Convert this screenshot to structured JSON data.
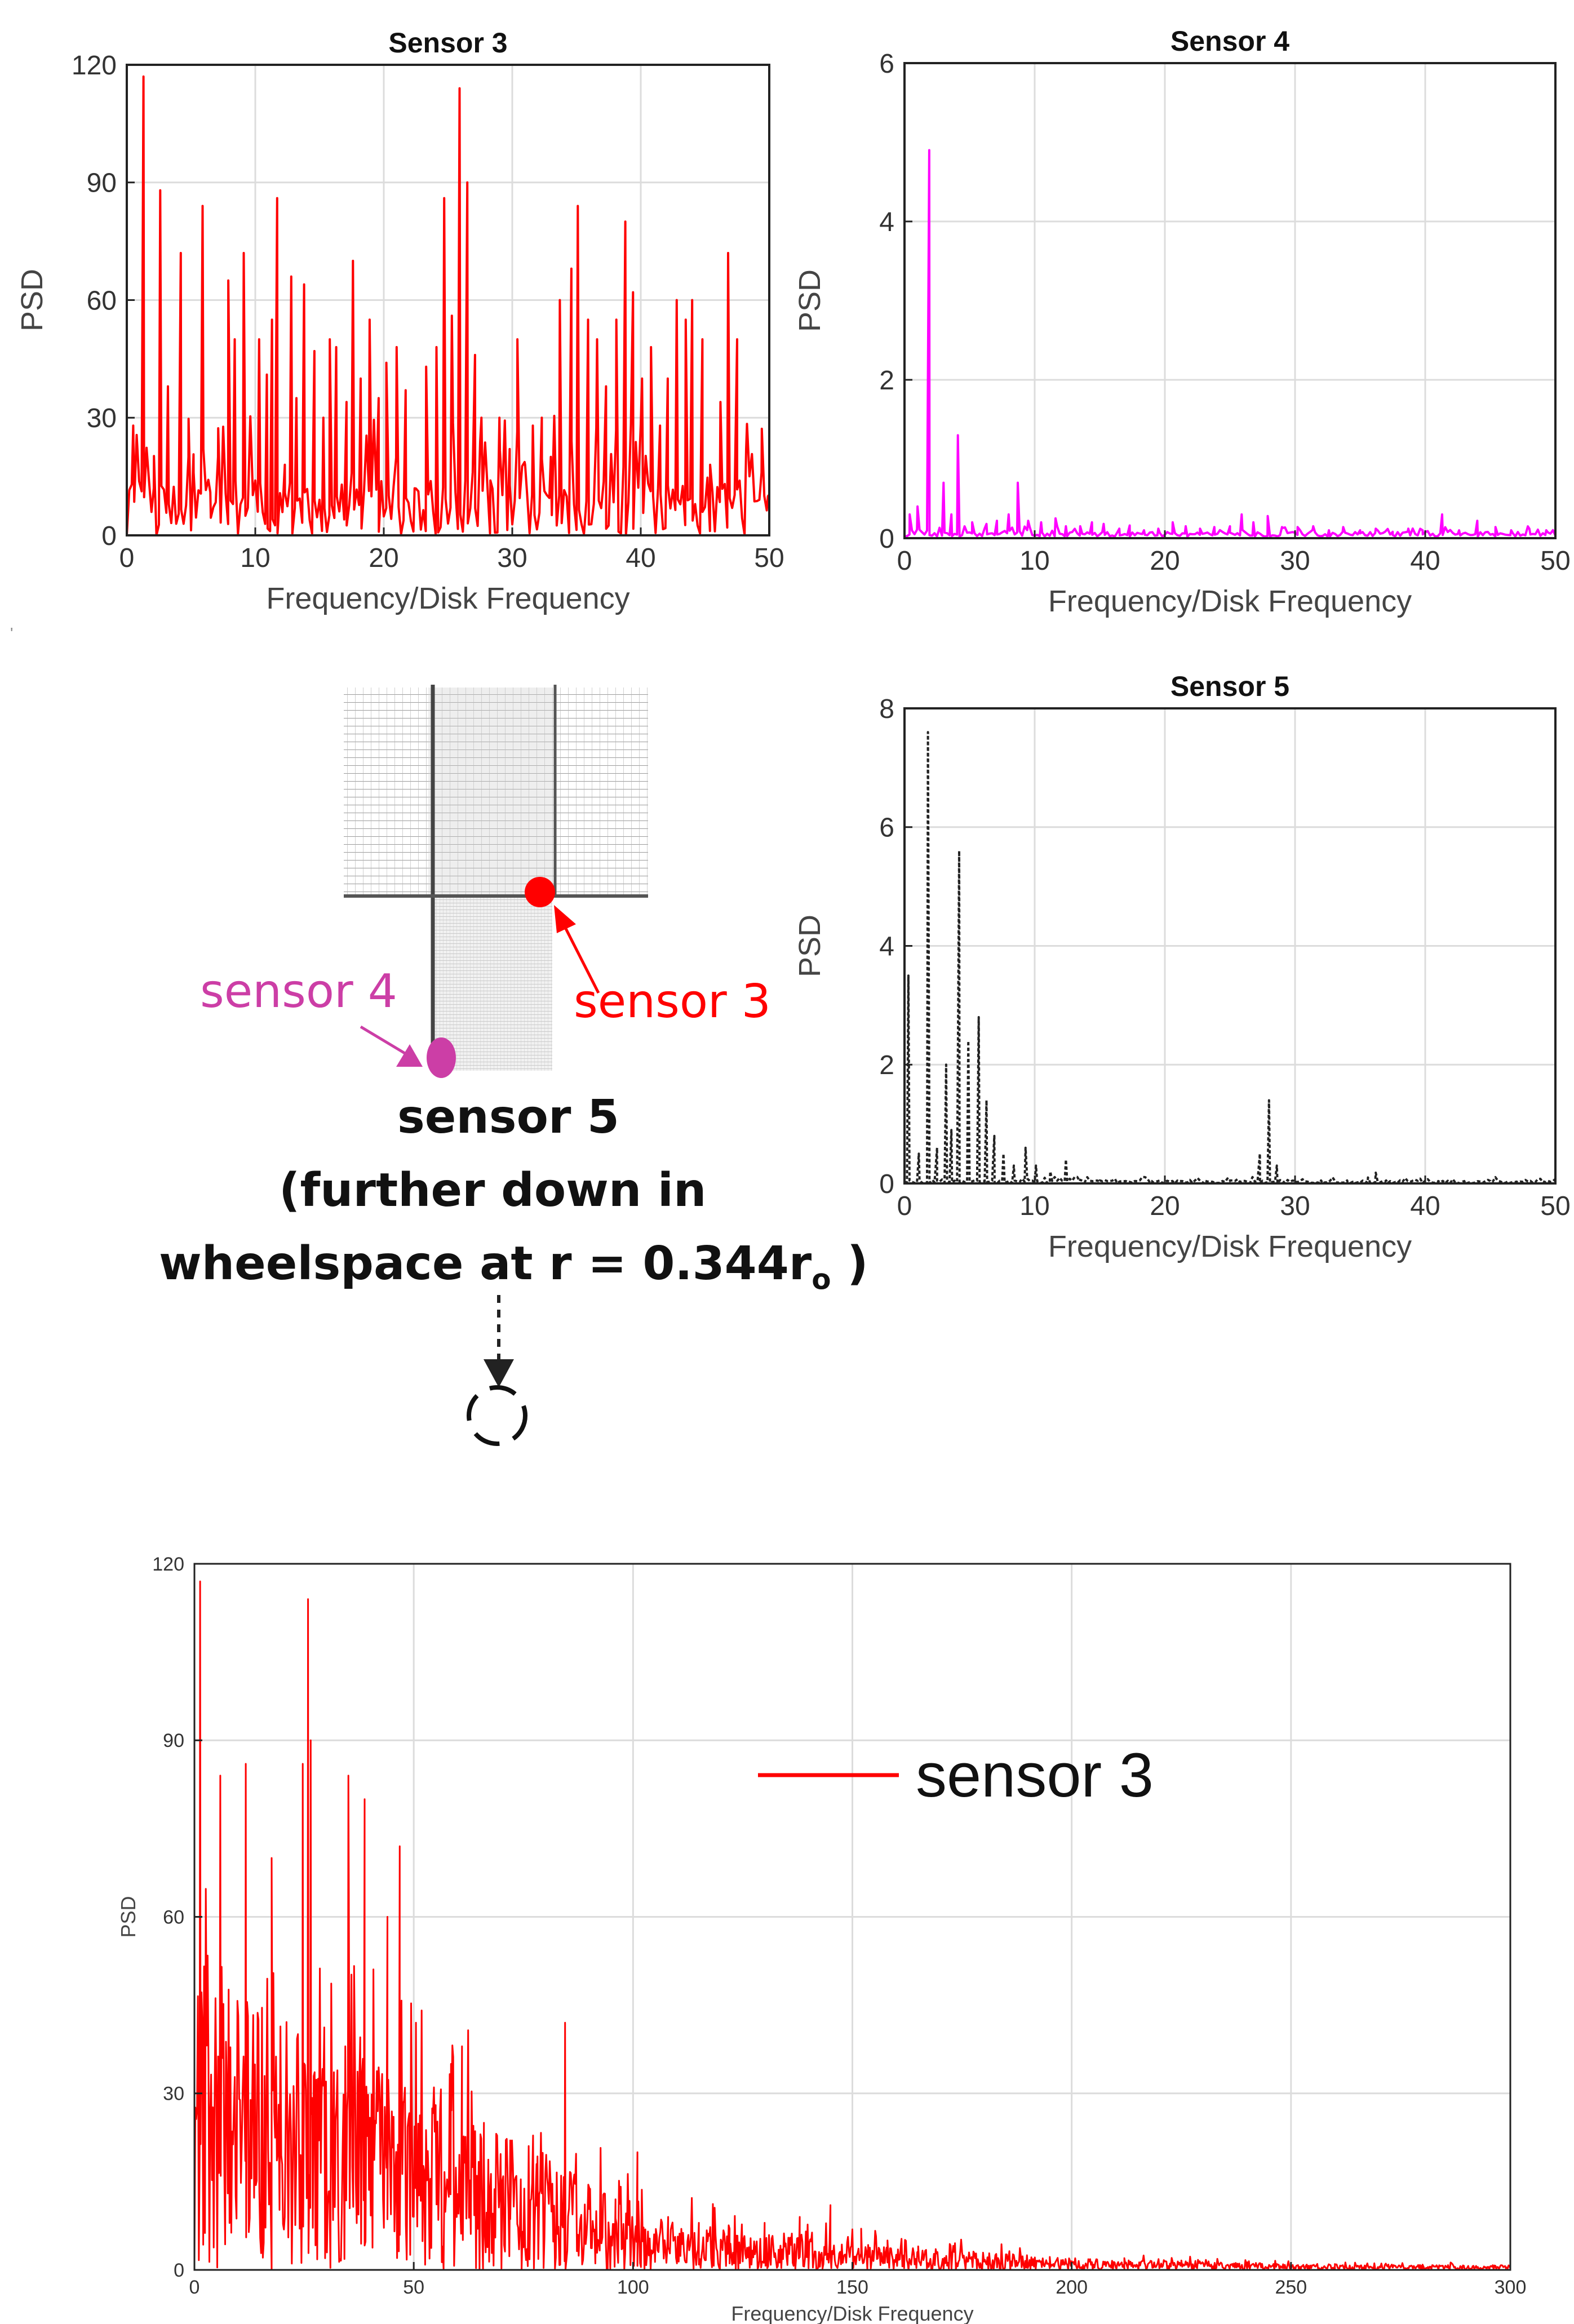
{
  "figure": {
    "stray_mark": "'"
  },
  "diagram": {
    "sensor3_label": "sensor 3",
    "sensor4_label": "sensor 4",
    "sensor5_line1": "sensor 5",
    "sensor5_line2": "(further down in",
    "sensor5_line3_main": "wheelspace at r = 0.344r",
    "sensor5_line3_sub": "o",
    "sensor5_line3_end": " )",
    "colors": {
      "sensor3": "#ff0000",
      "sensor4": "#cc3ea6",
      "mesh": "#888888"
    }
  },
  "chart_data": [
    {
      "id": "sensor3",
      "type": "line",
      "title": "Sensor 3",
      "xlabel": "Frequency/Disk Frequency",
      "ylabel": "PSD",
      "xlim": [
        0,
        50
      ],
      "ylim": [
        0,
        120
      ],
      "xticks": [
        0,
        10,
        20,
        30,
        40,
        50
      ],
      "yticks": [
        0,
        30,
        60,
        90,
        120
      ],
      "grid": true,
      "color": "#ff0000",
      "dash": "",
      "series": [
        {
          "name": "Sensor 3",
          "peaks": [
            [
              0.5,
              28
            ],
            [
              1.3,
              117
            ],
            [
              2.1,
              12
            ],
            [
              2.6,
              88
            ],
            [
              3.2,
              38
            ],
            [
              3.6,
              10
            ],
            [
              4.2,
              72
            ],
            [
              4.8,
              20
            ],
            [
              5.2,
              16
            ],
            [
              5.9,
              84
            ],
            [
              6.5,
              11
            ],
            [
              7.1,
              20
            ],
            [
              7.9,
              65
            ],
            [
              8.4,
              50
            ],
            [
              9.1,
              72
            ],
            [
              9.8,
              12
            ],
            [
              10.3,
              50
            ],
            [
              10.9,
              41
            ],
            [
              11.3,
              55
            ],
            [
              11.7,
              86
            ],
            [
              12.3,
              18
            ],
            [
              12.8,
              66
            ],
            [
              13.2,
              35
            ],
            [
              13.8,
              64
            ],
            [
              14.6,
              47
            ],
            [
              15.3,
              30
            ],
            [
              15.8,
              50
            ],
            [
              16.3,
              48
            ],
            [
              17.1,
              34
            ],
            [
              17.6,
              70
            ],
            [
              18.2,
              40
            ],
            [
              18.9,
              55
            ],
            [
              19.6,
              35
            ],
            [
              20.2,
              44
            ],
            [
              21.0,
              48
            ],
            [
              21.7,
              37
            ],
            [
              22.4,
              12
            ],
            [
              23.3,
              43
            ],
            [
              24.1,
              48
            ],
            [
              24.7,
              86
            ],
            [
              25.3,
              56
            ],
            [
              25.9,
              114
            ],
            [
              26.5,
              90
            ],
            [
              27.1,
              46
            ],
            [
              27.6,
              30
            ],
            [
              28.3,
              14
            ],
            [
              29.0,
              30
            ],
            [
              29.8,
              22
            ],
            [
              30.4,
              50
            ],
            [
              31.0,
              18
            ],
            [
              31.6,
              28
            ],
            [
              32.3,
              30
            ],
            [
              33.0,
              20
            ],
            [
              33.7,
              60
            ],
            [
              34.6,
              68
            ],
            [
              35.1,
              84
            ],
            [
              35.9,
              55
            ],
            [
              36.6,
              50
            ],
            [
              37.3,
              38
            ],
            [
              38.1,
              55
            ],
            [
              38.8,
              80
            ],
            [
              39.4,
              62
            ],
            [
              40.1,
              40
            ],
            [
              40.8,
              48
            ],
            [
              41.5,
              28
            ],
            [
              42.1,
              40
            ],
            [
              42.8,
              60
            ],
            [
              43.5,
              55
            ],
            [
              44.0,
              60
            ],
            [
              44.8,
              50
            ],
            [
              45.4,
              18
            ],
            [
              46.2,
              34
            ],
            [
              46.8,
              72
            ],
            [
              47.5,
              50
            ],
            [
              48.2,
              22
            ],
            [
              48.8,
              12
            ],
            [
              49.4,
              16
            ],
            [
              49.9,
              10
            ]
          ],
          "floor": [
            0,
            14
          ]
        }
      ]
    },
    {
      "id": "sensor4",
      "type": "line",
      "title": "Sensor 4",
      "xlabel": "Frequency/Disk Frequency",
      "ylabel": "PSD",
      "xlim": [
        0,
        50
      ],
      "ylim": [
        0,
        6
      ],
      "xticks": [
        0,
        10,
        20,
        30,
        40,
        50
      ],
      "yticks": [
        0,
        2,
        4,
        6
      ],
      "grid": true,
      "color": "#ff00ff",
      "dash": "",
      "series": [
        {
          "name": "Sensor 4",
          "peaks": [
            [
              0.4,
              0.3
            ],
            [
              1.0,
              0.4
            ],
            [
              1.9,
              4.9
            ],
            [
              3.0,
              0.7
            ],
            [
              3.6,
              0.3
            ],
            [
              4.1,
              1.3
            ],
            [
              5.2,
              0.2
            ],
            [
              6.3,
              0.18
            ],
            [
              7.1,
              0.22
            ],
            [
              8.0,
              0.3
            ],
            [
              8.7,
              0.7
            ],
            [
              9.5,
              0.22
            ],
            [
              10.5,
              0.2
            ],
            [
              11.6,
              0.25
            ],
            [
              12.4,
              0.15
            ],
            [
              13.5,
              0.15
            ],
            [
              14.4,
              0.2
            ],
            [
              15.3,
              0.18
            ],
            [
              16.5,
              0.12
            ],
            [
              17.3,
              0.16
            ],
            [
              18.4,
              0.1
            ],
            [
              19.5,
              0.12
            ],
            [
              20.6,
              0.2
            ],
            [
              21.6,
              0.15
            ],
            [
              22.7,
              0.12
            ],
            [
              23.8,
              0.14
            ],
            [
              25.0,
              0.15
            ],
            [
              25.9,
              0.3
            ],
            [
              26.8,
              0.2
            ],
            [
              27.9,
              0.28
            ],
            [
              29.0,
              0.14
            ],
            [
              30.2,
              0.14
            ],
            [
              31.4,
              0.15
            ],
            [
              32.6,
              0.1
            ],
            [
              33.7,
              0.14
            ],
            [
              35.0,
              0.1
            ],
            [
              36.2,
              0.12
            ],
            [
              37.5,
              0.08
            ],
            [
              38.7,
              0.12
            ],
            [
              39.8,
              0.1
            ],
            [
              41.3,
              0.3
            ],
            [
              42.6,
              0.1
            ],
            [
              44.0,
              0.22
            ],
            [
              45.4,
              0.14
            ],
            [
              46.6,
              0.1
            ],
            [
              48.0,
              0.12
            ],
            [
              49.3,
              0.1
            ]
          ],
          "floor": [
            0.02,
            0.08
          ]
        }
      ]
    },
    {
      "id": "sensor5",
      "type": "line",
      "title": "Sensor 5",
      "xlabel": "Frequency/Disk Frequency",
      "ylabel": "PSD",
      "xlim": [
        0,
        50
      ],
      "ylim": [
        0,
        8
      ],
      "xticks": [
        0,
        10,
        20,
        30,
        40,
        50
      ],
      "yticks": [
        0,
        2,
        4,
        6,
        8
      ],
      "grid": true,
      "color": "#222222",
      "dash": "6,4",
      "series": [
        {
          "name": "Sensor 5",
          "peaks": [
            [
              0.3,
              3.5
            ],
            [
              1.1,
              0.5
            ],
            [
              1.8,
              7.6
            ],
            [
              2.5,
              0.6
            ],
            [
              3.2,
              2.0
            ],
            [
              3.6,
              0.9
            ],
            [
              4.2,
              5.6
            ],
            [
              4.9,
              2.4
            ],
            [
              5.7,
              2.8
            ],
            [
              6.3,
              1.4
            ],
            [
              6.9,
              0.8
            ],
            [
              7.6,
              0.5
            ],
            [
              8.4,
              0.3
            ],
            [
              9.3,
              0.6
            ],
            [
              10.1,
              0.3
            ],
            [
              11.2,
              0.2
            ],
            [
              12.4,
              0.4
            ],
            [
              13.5,
              0.06
            ],
            [
              15.0,
              0.05
            ],
            [
              17.0,
              0.04
            ],
            [
              19.0,
              0.04
            ],
            [
              21.0,
              0.04
            ],
            [
              23.0,
              0.04
            ],
            [
              25.0,
              0.04
            ],
            [
              27.3,
              0.5
            ],
            [
              28.0,
              1.4
            ],
            [
              28.6,
              0.3
            ],
            [
              30.0,
              0.04
            ],
            [
              32.0,
              0.05
            ],
            [
              34.0,
              0.05
            ],
            [
              35.6,
              0.1
            ],
            [
              36.2,
              0.18
            ],
            [
              37.0,
              0.05
            ],
            [
              39.0,
              0.04
            ],
            [
              41.0,
              0.04
            ],
            [
              43.0,
              0.04
            ],
            [
              45.0,
              0.04
            ],
            [
              47.0,
              0.03
            ],
            [
              49.0,
              0.03
            ]
          ],
          "floor": [
            0.0,
            0.05
          ]
        }
      ]
    },
    {
      "id": "sensor3_full",
      "type": "line",
      "title": "",
      "xlabel": "Frequency/Disk Frequency",
      "ylabel": "PSD",
      "xlim": [
        0,
        300
      ],
      "ylim": [
        0,
        120
      ],
      "xticks": [
        0,
        50,
        100,
        150,
        200,
        250,
        300
      ],
      "yticks": [
        0,
        30,
        60,
        90,
        120
      ],
      "grid": true,
      "color": "#ff0000",
      "dash": "",
      "legend": {
        "label": "sensor 3",
        "position": "top-right"
      },
      "series": [
        {
          "name": "sensor 3",
          "peaks": [
            [
              1.3,
              117
            ],
            [
              5.9,
              84
            ],
            [
              11.7,
              86
            ],
            [
              17.6,
              70
            ],
            [
              24.7,
              86
            ],
            [
              25.9,
              114
            ],
            [
              26.5,
              90
            ],
            [
              35.1,
              84
            ],
            [
              38.8,
              80
            ],
            [
              44.0,
              60
            ],
            [
              46.8,
              72
            ],
            [
              50.5,
              42
            ],
            [
              55.0,
              28
            ],
            [
              58.5,
              35
            ],
            [
              61.0,
              38
            ],
            [
              66.0,
              25
            ],
            [
              72.0,
              22
            ],
            [
              78.0,
              18
            ],
            [
              84.5,
              42
            ],
            [
              90.0,
              14
            ],
            [
              96.0,
              12
            ],
            [
              101.0,
              20
            ],
            [
              108.0,
              9
            ],
            [
              115.0,
              8
            ],
            [
              122.0,
              7
            ],
            [
              130.0,
              8
            ],
            [
              138.0,
              9
            ],
            [
              145.0,
              11
            ],
            [
              152.0,
              7
            ],
            [
              158.0,
              5
            ],
            [
              165.0,
              4
            ],
            [
              175.0,
              3
            ],
            [
              185.0,
              2.6
            ],
            [
              195.0,
              2.2
            ],
            [
              212.0,
              2.0
            ],
            [
              225.0,
              1.6
            ],
            [
              240.0,
              1.3
            ],
            [
              260.0,
              1.0
            ],
            [
              280.0,
              0.9
            ],
            [
              296.0,
              0.8
            ]
          ],
          "floor_profile": [
            [
              0,
              55
            ],
            [
              20,
              50
            ],
            [
              50,
              30
            ],
            [
              80,
              20
            ],
            [
              100,
              10
            ],
            [
              130,
              6
            ],
            [
              160,
              4
            ],
            [
              200,
              2
            ],
            [
              250,
              1
            ],
            [
              300,
              0.8
            ]
          ]
        }
      ]
    }
  ]
}
